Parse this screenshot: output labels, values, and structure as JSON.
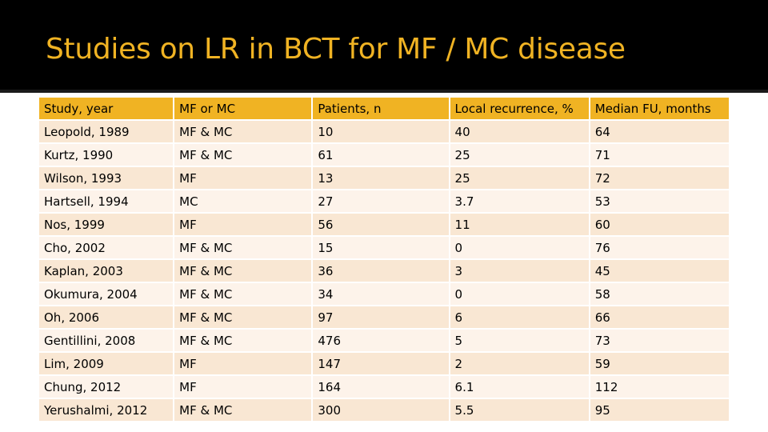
{
  "slide": {
    "title": "Studies on LR in BCT for MF / MC disease",
    "colors": {
      "title_bar": "#000000",
      "title_text": "#f0b323",
      "header_fill": "#f0b323",
      "row_band_dark": "#f9e7d3",
      "row_band_light": "#fdf3ea"
    }
  },
  "table": {
    "headers": [
      "Study, year",
      "MF or MC",
      "Patients, n",
      "Local recurrence, %",
      "Median FU, months"
    ],
    "rows": [
      [
        "Leopold, 1989",
        "MF & MC",
        "10",
        "40",
        "64"
      ],
      [
        "Kurtz, 1990",
        "MF & MC",
        "61",
        "25",
        "71"
      ],
      [
        "Wilson, 1993",
        "MF",
        "13",
        "25",
        "72"
      ],
      [
        "Hartsell, 1994",
        "MC",
        "27",
        "3.7",
        "53"
      ],
      [
        "Nos, 1999",
        "MF",
        "56",
        "11",
        "60"
      ],
      [
        "Cho, 2002",
        "MF & MC",
        "15",
        "0",
        "76"
      ],
      [
        "Kaplan, 2003",
        "MF & MC",
        "36",
        "3",
        "45"
      ],
      [
        "Okumura, 2004",
        "MF & MC",
        "34",
        "0",
        "58"
      ],
      [
        "Oh, 2006",
        "MF & MC",
        "97",
        "6",
        "66"
      ],
      [
        "Gentillini, 2008",
        "MF & MC",
        "476",
        "5",
        "73"
      ],
      [
        "Lim, 2009",
        "MF",
        "147",
        "2",
        "59"
      ],
      [
        "Chung, 2012",
        "MF",
        "164",
        "6.1",
        "112"
      ],
      [
        "Yerushalmi, 2012",
        "MF & MC",
        "300",
        "5.5",
        "95"
      ]
    ]
  }
}
